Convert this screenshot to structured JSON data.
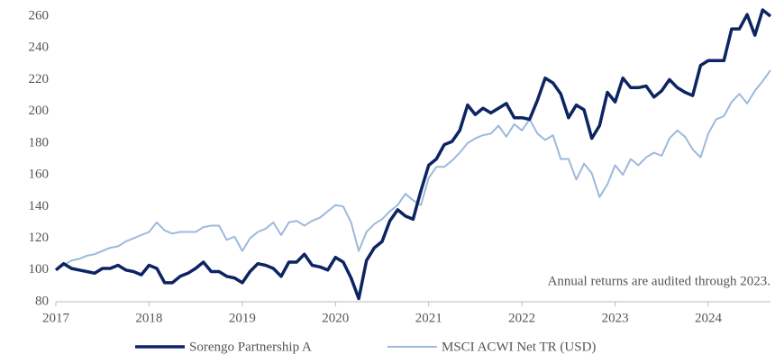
{
  "chart_data": {
    "type": "line",
    "annotation": "Annual returns are audited through 2023.",
    "x": [
      2017,
      2017.083,
      2017.167,
      2017.25,
      2017.333,
      2017.417,
      2017.5,
      2017.583,
      2017.667,
      2017.75,
      2017.833,
      2017.917,
      2018,
      2018.083,
      2018.167,
      2018.25,
      2018.333,
      2018.417,
      2018.5,
      2018.583,
      2018.667,
      2018.75,
      2018.833,
      2018.917,
      2019,
      2019.083,
      2019.167,
      2019.25,
      2019.333,
      2019.417,
      2019.5,
      2019.583,
      2019.667,
      2019.75,
      2019.833,
      2019.917,
      2020,
      2020.083,
      2020.167,
      2020.25,
      2020.333,
      2020.417,
      2020.5,
      2020.583,
      2020.667,
      2020.75,
      2020.833,
      2020.917,
      2021,
      2021.083,
      2021.167,
      2021.25,
      2021.333,
      2021.417,
      2021.5,
      2021.583,
      2021.667,
      2021.75,
      2021.833,
      2021.917,
      2022,
      2022.083,
      2022.167,
      2022.25,
      2022.333,
      2022.417,
      2022.5,
      2022.583,
      2022.667,
      2022.75,
      2022.833,
      2022.917,
      2023,
      2023.083,
      2023.167,
      2023.25,
      2023.333,
      2023.417,
      2023.5,
      2023.583,
      2023.667,
      2023.75,
      2023.833,
      2023.917,
      2024,
      2024.083,
      2024.167,
      2024.25,
      2024.333,
      2024.417,
      2024.5,
      2024.583,
      2024.667
    ],
    "series": [
      {
        "name": "Sorengo Partnership A",
        "color": "#0c2461",
        "values": [
          100,
          104,
          101,
          100,
          99,
          98,
          101,
          101,
          103,
          100,
          99,
          97,
          103,
          101,
          92,
          92,
          96,
          98,
          101,
          105,
          99,
          99,
          96,
          95,
          92,
          99,
          104,
          103,
          101,
          96,
          105,
          105,
          110,
          103,
          102,
          100,
          108,
          105,
          95,
          82,
          106,
          114,
          118,
          131,
          138,
          134,
          132,
          150,
          166,
          170,
          179,
          181,
          188,
          204,
          198,
          202,
          199,
          202,
          205,
          196,
          196,
          195,
          207,
          221,
          218,
          211,
          196,
          204,
          201,
          183,
          191,
          212,
          206,
          221,
          215,
          215,
          216,
          209,
          213,
          220,
          215,
          212,
          210,
          229,
          232,
          232,
          232,
          252,
          252,
          261,
          248,
          264,
          260
        ]
      },
      {
        "name": "MSCI ACWI Net TR (USD)",
        "color": "#9db9db",
        "values": [
          100,
          103,
          106,
          107,
          109,
          110,
          112,
          114,
          115,
          118,
          120,
          122,
          124,
          130,
          125,
          123,
          124,
          124,
          124,
          127,
          128,
          128,
          119,
          121,
          112,
          120,
          124,
          126,
          130,
          122,
          130,
          131,
          128,
          131,
          133,
          137,
          141,
          140,
          130,
          112,
          124,
          129,
          132,
          137,
          141,
          148,
          144,
          141,
          158,
          165,
          165,
          169,
          174,
          180,
          183,
          185,
          186,
          191,
          184,
          192,
          188,
          195,
          186,
          182,
          185,
          170,
          170,
          157,
          167,
          161,
          146,
          154,
          166,
          160,
          170,
          166,
          171,
          174,
          172,
          183,
          188,
          184,
          176,
          171,
          186,
          195,
          197,
          206,
          211,
          205,
          213,
          219,
          226
        ]
      }
    ],
    "xlim": [
      2017,
      2024.667
    ],
    "xticks": [
      2017,
      2018,
      2019,
      2020,
      2021,
      2022,
      2023,
      2024
    ],
    "ylim": [
      80,
      260
    ],
    "yticks": [
      80,
      100,
      120,
      140,
      160,
      180,
      200,
      220,
      240,
      260
    ],
    "grid": false,
    "legend": "bottom"
  }
}
